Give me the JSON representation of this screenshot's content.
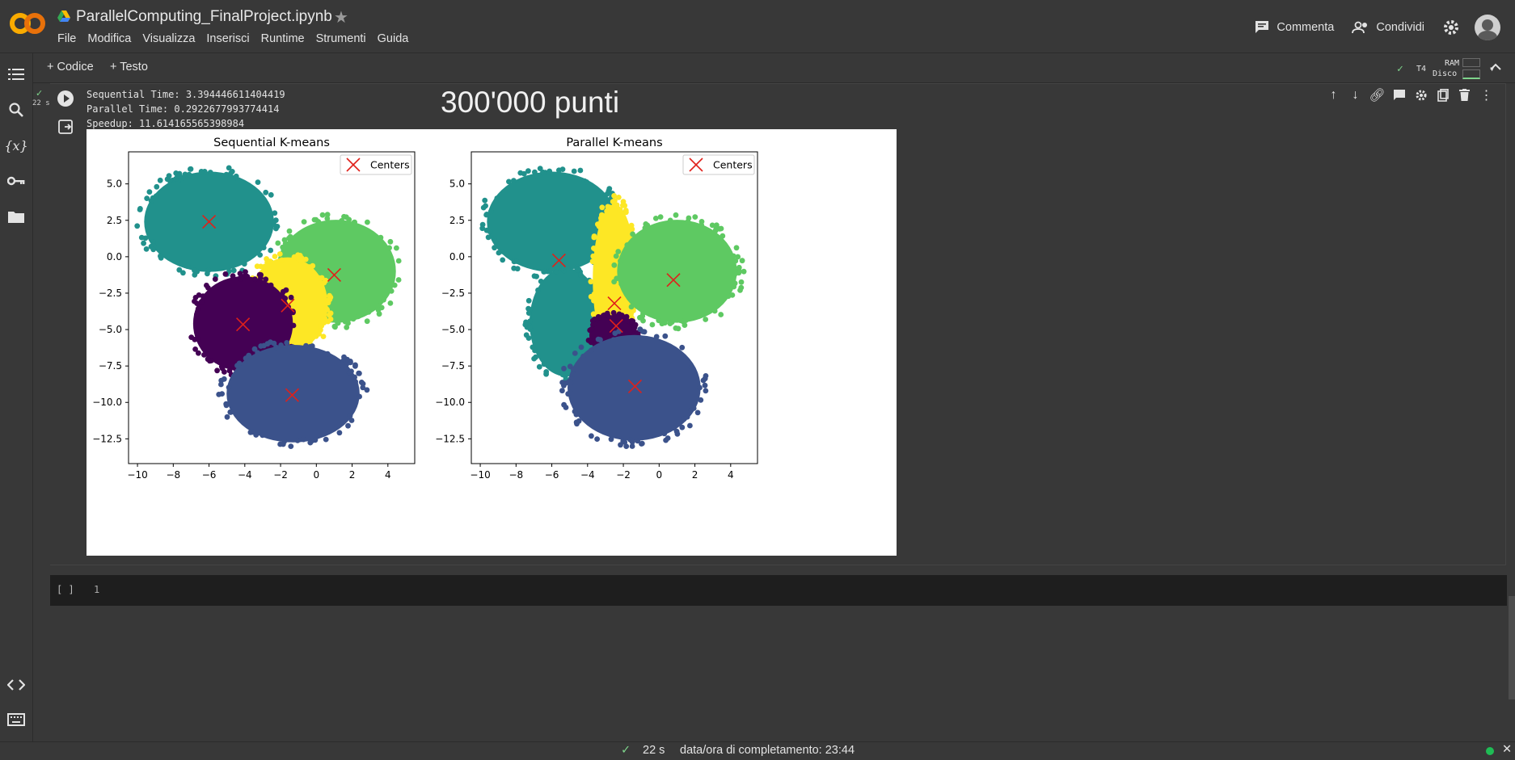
{
  "app": {
    "logo_text": "CO",
    "notebook_title": "ParallelComputing_FinalProject.ipynb",
    "menu": [
      "File",
      "Modifica",
      "Visualizza",
      "Inserisci",
      "Runtime",
      "Strumenti",
      "Guida"
    ],
    "comment_label": "Commenta",
    "share_label": "Condividi"
  },
  "toolbar": {
    "add_code": "+ Codice",
    "add_text": "+ Testo",
    "runtime_label": "T4",
    "ram_label": "RAM",
    "disk_label": "Disco"
  },
  "rail": {
    "icons": [
      "toc-icon",
      "search-icon",
      "variables-icon",
      "key-icon",
      "folder-icon",
      "code-snippets-icon",
      "terminal-icon"
    ],
    "variables_glyph": "{x}"
  },
  "cell": {
    "exec_time": "22 s",
    "stdout": [
      "Sequential Time: 3.394446611404419",
      "Parallel Time: 0.2922677993774414",
      "Speedup: 11.614165565398984"
    ],
    "heading": "300'000 punti"
  },
  "chart_data": [
    {
      "type": "scatter",
      "title": "Sequential K-means",
      "legend": "Centers",
      "legend_position": "top-right",
      "xlim": [
        -10.5,
        5.5
      ],
      "ylim": [
        -14.2,
        7.2
      ],
      "xticks": [
        -10,
        -8,
        -6,
        -4,
        -2,
        0,
        2,
        4
      ],
      "yticks": [
        5.0,
        2.5,
        0.0,
        -2.5,
        -5.0,
        -7.5,
        -10.0,
        -12.5
      ],
      "xtick_labels": [
        "−10",
        "−8",
        "−6",
        "−4",
        "−2",
        "0",
        "2",
        "4"
      ],
      "ytick_labels": [
        "5.0",
        "2.5",
        "0.0",
        "−2.5",
        "−5.0",
        "−7.5",
        "−10.0",
        "−12.5"
      ],
      "clusters": [
        {
          "color": "#21918c",
          "cx": -6.0,
          "cy": 2.4,
          "rx": 3.9,
          "ry": 3.7
        },
        {
          "color": "#5ec962",
          "cx": 1.1,
          "cy": -1.0,
          "rx": 3.6,
          "ry": 3.8
        },
        {
          "color": "#fde725",
          "cx": -1.6,
          "cy": -3.3,
          "rx": 2.4,
          "ry": 3.5
        },
        {
          "color": "#440154",
          "cx": -4.1,
          "cy": -4.6,
          "rx": 3.0,
          "ry": 3.5
        },
        {
          "color": "#3b528b",
          "cx": -1.3,
          "cy": -9.4,
          "rx": 4.0,
          "ry": 3.6
        }
      ],
      "centers": [
        [
          -6.0,
          2.4
        ],
        [
          1.0,
          -1.25
        ],
        [
          -1.6,
          -3.35
        ],
        [
          -4.1,
          -4.65
        ],
        [
          -1.35,
          -9.5
        ]
      ]
    },
    {
      "type": "scatter",
      "title": "Parallel K-means",
      "legend": "Centers",
      "legend_position": "top-right",
      "xlim": [
        -10.5,
        5.5
      ],
      "ylim": [
        -14.2,
        7.2
      ],
      "xticks": [
        -10,
        -8,
        -6,
        -4,
        -2,
        0,
        2,
        4
      ],
      "yticks": [
        5.0,
        2.5,
        0.0,
        -2.5,
        -5.0,
        -7.5,
        -10.0,
        -12.5
      ],
      "xtick_labels": [
        "−10",
        "−8",
        "−6",
        "−4",
        "−2",
        "0",
        "2",
        "4"
      ],
      "ytick_labels": [
        "5.0",
        "2.5",
        "0.0",
        "−2.5",
        "−5.0",
        "−7.5",
        "−10.0",
        "−12.5"
      ],
      "clusters": [
        {
          "color": "#21918c",
          "cx": -6.0,
          "cy": 2.4,
          "rx": 3.9,
          "ry": 3.7
        },
        {
          "color": "#21918c",
          "cx": -5.2,
          "cy": -4.5,
          "rx": 2.2,
          "ry": 4.0
        },
        {
          "color": "#fde725",
          "cx": -2.5,
          "cy": -1.6,
          "rx": 1.3,
          "ry": 5.6
        },
        {
          "color": "#5ec962",
          "cx": 1.0,
          "cy": -1.0,
          "rx": 3.6,
          "ry": 3.8
        },
        {
          "color": "#440154",
          "cx": -2.6,
          "cy": -5.4,
          "rx": 1.4,
          "ry": 1.5
        },
        {
          "color": "#3b528b",
          "cx": -1.4,
          "cy": -9.0,
          "rx": 4.0,
          "ry": 3.9
        }
      ],
      "centers": [
        [
          -5.6,
          -0.25
        ],
        [
          0.8,
          -1.6
        ],
        [
          -2.5,
          -3.2
        ],
        [
          -2.4,
          -4.75
        ],
        [
          -1.35,
          -8.9
        ]
      ]
    }
  ],
  "empty_cell": {
    "bracket": "[ ]",
    "line_number": "1"
  },
  "status": {
    "time": "22 s",
    "completion": "data/ora di completamento: 23:44"
  }
}
